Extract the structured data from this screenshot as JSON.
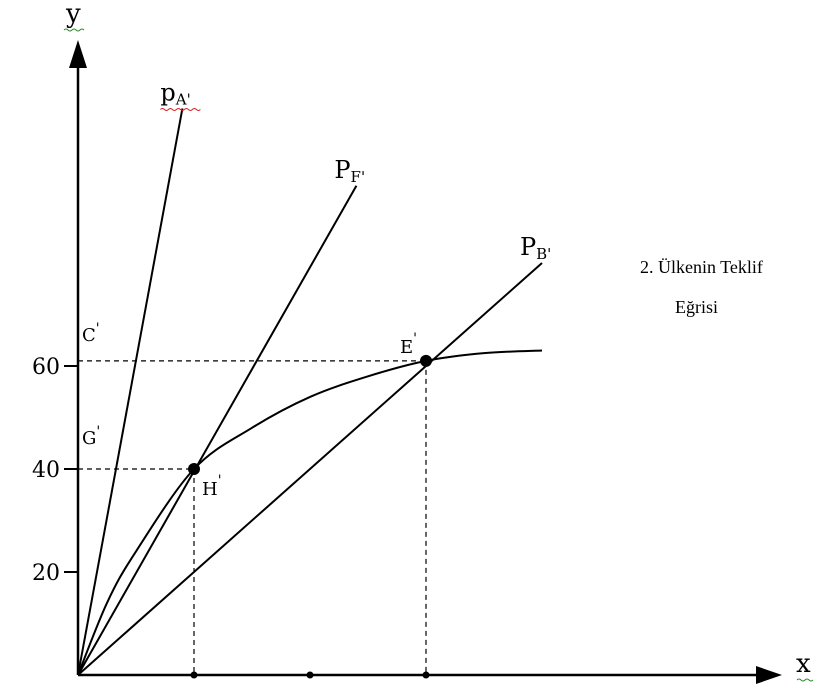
{
  "chart_data": {
    "type": "line",
    "xlabel": "x",
    "ylabel": "y",
    "x_ticks": [
      20,
      40,
      60
    ],
    "y_ticks": [
      20,
      40,
      60
    ],
    "xlim": [
      0,
      115
    ],
    "ylim": [
      0,
      117
    ],
    "ray_lines": [
      {
        "name": "pA",
        "label_main": "p",
        "label_sub": "A'",
        "end": [
          18,
          110
        ]
      },
      {
        "name": "PF",
        "label_main": "P",
        "label_sub": "F'",
        "end": [
          48,
          95
        ]
      },
      {
        "name": "PB",
        "label_main": "P",
        "label_sub": "B'",
        "end": [
          80,
          80
        ]
      }
    ],
    "offer_curve": {
      "name": "2. Ülkenin Teklif Eğrisi",
      "label_line1": "2. Ülkenin Teklif",
      "label_line2": "Eğrisi",
      "points": [
        [
          0,
          0
        ],
        [
          5,
          14
        ],
        [
          10,
          24
        ],
        [
          20,
          40
        ],
        [
          30,
          48
        ],
        [
          40,
          54
        ],
        [
          50,
          58
        ],
        [
          60,
          61
        ],
        [
          70,
          62.5
        ],
        [
          80,
          63
        ]
      ]
    },
    "marked_points": [
      {
        "name": "H'",
        "x": 20,
        "y": 40,
        "label": "H",
        "prime": "'"
      },
      {
        "name": "E'",
        "x": 60,
        "y": 61,
        "label": "E",
        "prime": "'"
      }
    ],
    "y_axis_labels": [
      {
        "label": "C",
        "prime": "'",
        "y": 66
      },
      {
        "label": "G",
        "prime": "'",
        "y": 46
      }
    ],
    "guides": [
      {
        "from": [
          0,
          40
        ],
        "to": [
          20,
          40
        ]
      },
      {
        "from": [
          20,
          40
        ],
        "to": [
          20,
          0
        ]
      },
      {
        "from": [
          0,
          61
        ],
        "to": [
          60,
          61
        ]
      },
      {
        "from": [
          60,
          61
        ],
        "to": [
          60,
          0
        ]
      }
    ]
  }
}
